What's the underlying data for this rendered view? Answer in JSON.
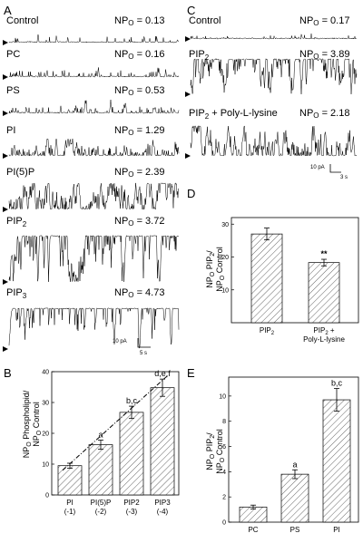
{
  "panels": {
    "A": {
      "letter": "A",
      "traces": [
        {
          "label": "Control",
          "npo_prefix": "NP",
          "npo_sub": "O",
          "npo_value": " = 0.13",
          "activity": 0.13
        },
        {
          "label": "PC",
          "npo_prefix": "NP",
          "npo_sub": "O",
          "npo_value": " = 0.16",
          "activity": 0.16
        },
        {
          "label": "PS",
          "npo_prefix": "NP",
          "npo_sub": "O",
          "npo_value": " = 0.53",
          "activity": 0.53
        },
        {
          "label": "PI",
          "npo_prefix": "NP",
          "npo_sub": "O",
          "npo_value": " = 1.29",
          "activity": 1.29
        },
        {
          "label": "PI(5)P",
          "npo_prefix": "NP",
          "npo_sub": "O",
          "npo_value": " = 2.39",
          "activity": 2.39
        },
        {
          "label_main": "PIP",
          "label_sub": "2",
          "npo_prefix": "NP",
          "npo_sub": "O",
          "npo_value": " = 3.72",
          "activity": 3.72
        },
        {
          "label_main": "PIP",
          "label_sub": "3",
          "npo_prefix": "NP",
          "npo_sub": "O",
          "npo_value": " = 4.73",
          "activity": 4.73
        }
      ],
      "scale_pa": "10 pA",
      "scale_s": "5 s"
    },
    "C": {
      "letter": "C",
      "traces": [
        {
          "label": "Control",
          "npo_prefix": "NP",
          "npo_sub": "O",
          "npo_value": " = 0.17",
          "activity": 0.17
        },
        {
          "label_main": "PIP",
          "label_sub": "2",
          "npo_prefix": "NP",
          "npo_sub": "O",
          "npo_value": " = 3.89",
          "activity": 3.89
        },
        {
          "label_main": "PIP",
          "label_sub": "2",
          "label_rest": " + Poly-L-lysine",
          "npo_prefix": "NP",
          "npo_sub": "O",
          "npo_value": " = 2.18",
          "activity": 2.18
        }
      ],
      "scale_pa": "10 pA",
      "scale_s": "3 s"
    },
    "B": {
      "letter": "B",
      "ylabel_line1": "NP",
      "ylabel_sub1": "O",
      "ylabel_rest1": " Phospholipid/",
      "ylabel_line2": "NP",
      "ylabel_sub2": "O",
      "ylabel_rest2": " Control"
    },
    "D": {
      "letter": "D",
      "ylabel_line1": "NP",
      "ylabel_sub1": "O",
      "ylabel_rest1": " PIP",
      "ylabel_sub1b": "2",
      "ylabel_rest1b": "/",
      "ylabel_line2": "NP",
      "ylabel_sub2": "O",
      "ylabel_rest2": " Control"
    },
    "E": {
      "letter": "E",
      "ylabel_line1": "NP",
      "ylabel_sub1": "O",
      "ylabel_rest1": " PIP",
      "ylabel_sub1b": "2",
      "ylabel_rest1b": "/",
      "ylabel_line2": "NP",
      "ylabel_sub2": "O",
      "ylabel_rest2": " Control"
    }
  },
  "chart_data": [
    {
      "panel": "B",
      "type": "bar",
      "categories": [
        "PI\n(-1)",
        "PI(5)P\n(-2)",
        "PIP2\n(-3)",
        "PIP3\n(-4)"
      ],
      "values": [
        9.5,
        16.3,
        26.8,
        34.8
      ],
      "errors": [
        0.8,
        1.5,
        2.0,
        2.8
      ],
      "annotations": [
        "",
        "a",
        "b,c",
        "d,e,f"
      ],
      "trendline": true,
      "ylim": [
        0,
        40
      ],
      "yticks": [
        "0",
        "10",
        "20",
        "30",
        "40"
      ]
    },
    {
      "panel": "D",
      "type": "bar",
      "categories": [
        "PIP2",
        "PIP2 +\nPoly-L-lysine"
      ],
      "values": [
        27.0,
        18.3
      ],
      "errors": [
        1.8,
        1.0
      ],
      "annotations": [
        "",
        "**"
      ],
      "ylim": [
        0,
        32
      ],
      "yticks": [
        "10",
        "20",
        "30"
      ]
    },
    {
      "panel": "E",
      "type": "bar",
      "categories": [
        "PC",
        "PS",
        "PI"
      ],
      "values": [
        1.2,
        3.8,
        9.7
      ],
      "errors": [
        0.15,
        0.35,
        0.9
      ],
      "annotations": [
        "",
        "a",
        "b,c"
      ],
      "ylim": [
        0,
        11.5
      ],
      "yticks": [
        "0",
        "2",
        "4",
        "6",
        "8",
        "10"
      ]
    }
  ],
  "colors": {
    "ink": "#000000",
    "hatch": "#555555",
    "bar_fill": "#ffffff"
  }
}
